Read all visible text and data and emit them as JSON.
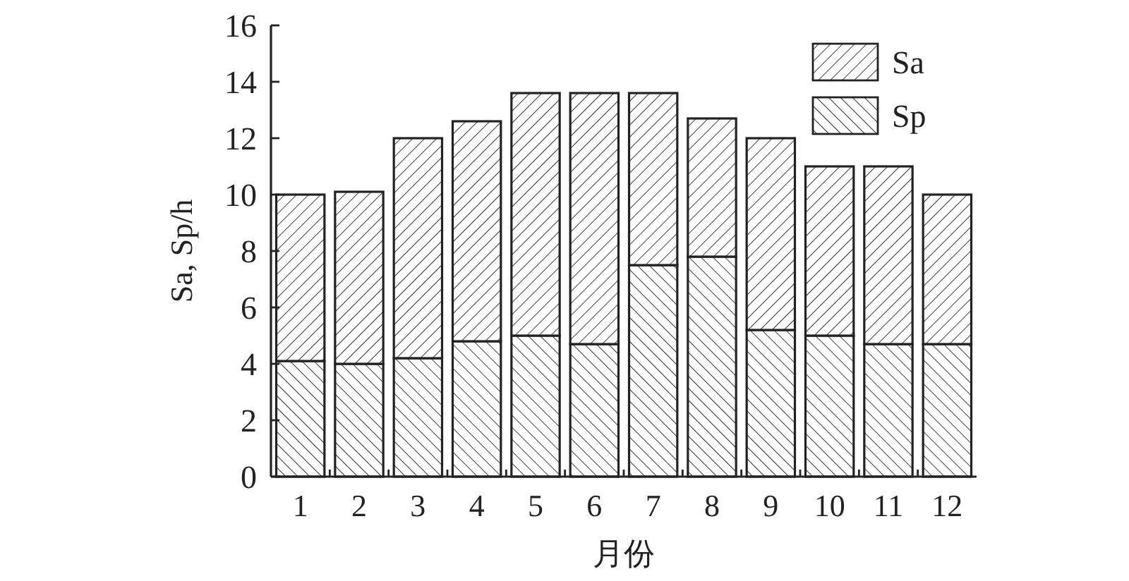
{
  "chart_data": {
    "type": "bar",
    "stacked": true,
    "xlabel": "月份",
    "ylabel": "Sa, Sp/h",
    "categories": [
      "1",
      "2",
      "3",
      "4",
      "5",
      "6",
      "7",
      "8",
      "9",
      "10",
      "11",
      "12"
    ],
    "series": [
      {
        "name": "Sp",
        "color": "#222222",
        "values": [
          4.1,
          4.0,
          4.2,
          4.8,
          5.0,
          4.7,
          7.5,
          7.8,
          5.2,
          5.0,
          4.7,
          4.7
        ]
      },
      {
        "name": "Sa",
        "color": "#222222",
        "values": [
          5.9,
          6.1,
          7.8,
          7.8,
          8.6,
          8.9,
          6.1,
          4.9,
          6.8,
          6.0,
          6.3,
          5.3
        ]
      }
    ],
    "ylim": [
      0,
      16
    ],
    "yticks": [
      0,
      2,
      4,
      6,
      8,
      10,
      12,
      14,
      16
    ],
    "legend": "top right"
  }
}
